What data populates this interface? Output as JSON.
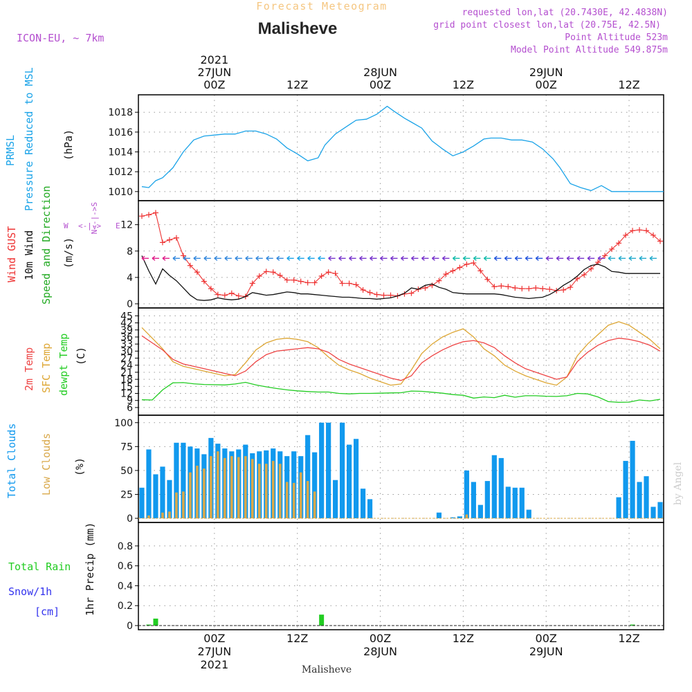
{
  "header": {
    "product": "Forecast Meteogram",
    "location": "Malisheve",
    "model": "ICON-EU, ~ 7km",
    "requested": "requested lon,lat (20.7430E, 42.4838N)",
    "gridpoint": "grid point closest lon,lat (20.75E, 42.5N)",
    "point_alt": "Point Altitude 523m",
    "model_alt": "Model Point Altitude 549.875m",
    "credit": "by Angel",
    "footer_location": "Malisheve"
  },
  "time_axis": {
    "hours_from": -11,
    "hours_to": 65,
    "top_ticks": [
      {
        "h": 0,
        "lines": [
          "2021",
          "27JUN",
          "00Z"
        ]
      },
      {
        "h": 12,
        "lines": [
          "12Z"
        ]
      },
      {
        "h": 24,
        "lines": [
          "28JUN",
          "00Z"
        ]
      },
      {
        "h": 36,
        "lines": [
          "12Z"
        ]
      },
      {
        "h": 48,
        "lines": [
          "29JUN",
          "00Z"
        ]
      },
      {
        "h": 60,
        "lines": [
          "12Z"
        ]
      }
    ],
    "bottom_ticks": [
      {
        "h": 0,
        "lines": [
          "00Z",
          "27JUN",
          "2021"
        ]
      },
      {
        "h": 12,
        "lines": [
          "12Z"
        ]
      },
      {
        "h": 24,
        "lines": [
          "00Z",
          "28JUN"
        ]
      },
      {
        "h": 36,
        "lines": [
          "12Z"
        ]
      },
      {
        "h": 48,
        "lines": [
          "00Z",
          "29JUN"
        ]
      },
      {
        "h": 60,
        "lines": [
          "12Z"
        ]
      }
    ]
  },
  "colors": {
    "pressure": "#1aa3e8",
    "gust": "#ee3333",
    "wind": "#111111",
    "dir_label": "#22aa22",
    "temp": "#ee4444",
    "sfc_temp": "#dda633",
    "dewpt": "#22cc22",
    "total_clouds": "#1199ee",
    "low_clouds": "#d9a84a",
    "rain": "#22cc22",
    "snow": "#3333ee",
    "title_orange": "#f5c680",
    "purple": "#b44fcf"
  },
  "chart_data": [
    {
      "id": "pressure",
      "type": "line",
      "labels": [
        "PRMSL",
        "Pressure Reduced to MSL"
      ],
      "unit": "(hPa)",
      "ylim": [
        1009.5,
        1019.2
      ],
      "yticks": [
        1010,
        1012,
        1014,
        1016,
        1018
      ],
      "x": [
        -10.5,
        -9.5,
        -8.5,
        -7.5,
        -6,
        -4.5,
        -3,
        -1.5,
        0,
        1.5,
        3,
        4.5,
        6,
        7.5,
        9,
        10.5,
        12,
        13.5,
        15,
        16,
        17.5,
        19,
        20.5,
        22,
        23.5,
        25,
        26,
        27.5,
        28.5,
        30,
        31.5,
        33,
        34.5,
        36,
        37.5,
        39,
        40,
        41.5,
        43,
        44.5,
        46,
        47.5,
        49,
        50,
        51.5,
        53,
        54.5,
        56,
        57.5,
        59,
        60.5,
        62,
        63.5,
        64.5,
        65
      ],
      "series": [
        {
          "name": "PRMSL",
          "values": [
            1010.5,
            1010.4,
            1011.1,
            1011.4,
            1012.4,
            1014,
            1015.2,
            1015.6,
            1015.7,
            1015.8,
            1015.8,
            1016.1,
            1016.1,
            1015.8,
            1015.3,
            1014.4,
            1013.8,
            1013.1,
            1013.4,
            1014.7,
            1015.8,
            1016.5,
            1017.2,
            1017.3,
            1017.8,
            1018.6,
            1018.1,
            1017.4,
            1017.0,
            1016.4,
            1015.1,
            1014.3,
            1013.6,
            1014.0,
            1014.6,
            1015.3,
            1015.4,
            1015.4,
            1015.2,
            1015.2,
            1015.0,
            1014.3,
            1013.3,
            1012.4,
            1010.8,
            1010.4,
            1010.1,
            1010.6,
            1010.0,
            1010.0,
            1010.0,
            1010.0,
            1010.0,
            1010.0,
            1010.0
          ]
        }
      ]
    },
    {
      "id": "wind",
      "type": "line",
      "labels": [
        "Wind GUST",
        "10m Wind",
        "Speed and Direction"
      ],
      "unit": "(m/s)",
      "compass": [
        "W",
        "<-|->",
        "E",
        "N",
        "S"
      ],
      "ylim": [
        0,
        14.8
      ],
      "yticks": [
        0,
        4,
        8,
        12
      ],
      "x": [
        -10.5,
        -9.5,
        -8.5,
        -7.5,
        -6.5,
        -5.5,
        -4.5,
        -3.5,
        -2.5,
        -1.5,
        -0.5,
        0.5,
        1.5,
        2.5,
        3.5,
        4.5,
        5.5,
        6.5,
        7.5,
        8.5,
        9.5,
        10.5,
        11.5,
        12.5,
        13.5,
        14.5,
        15.5,
        16.5,
        17.5,
        18.5,
        19.5,
        20.5,
        21.5,
        22.5,
        23.5,
        24.5,
        25.5,
        26.5,
        27.5,
        28.5,
        29.5,
        30.5,
        31.5,
        32.5,
        33.5,
        34.5,
        35.5,
        36.5,
        37.5,
        38.5,
        39.5,
        40.5,
        41.5,
        42.5,
        43.5,
        44.5,
        45.5,
        46.5,
        47.5,
        48.5,
        49.5,
        50.5,
        51.5,
        52.5,
        53.5,
        54.5,
        55.5,
        56.5,
        57.5,
        58.5,
        59.5,
        60.5,
        61.5,
        62.5,
        63.5,
        64.5
      ],
      "series": [
        {
          "name": "Wind GUST",
          "values": [
            13.3,
            13.5,
            13.8,
            9.3,
            9.7,
            10,
            7.3,
            5.8,
            4.8,
            3.4,
            2.3,
            1.4,
            1.3,
            1.6,
            1.2,
            1.1,
            3.1,
            4.2,
            4.9,
            4.8,
            4.3,
            3.6,
            3.6,
            3.4,
            3.2,
            3.2,
            4.2,
            4.8,
            4.6,
            3.1,
            3.1,
            2.9,
            2.1,
            1.7,
            1.4,
            1.3,
            1.3,
            1.2,
            1.5,
            1.6,
            2.2,
            2.4,
            2.8,
            3.5,
            4.5,
            5.0,
            5.5,
            6.0,
            6.2,
            5.0,
            3.7,
            2.6,
            2.7,
            2.6,
            2.4,
            2.3,
            2.3,
            2.4,
            2.3,
            2.2,
            2.0,
            2.1,
            2.5,
            3.8,
            4.4,
            5.3,
            6.3,
            7.3,
            8.3,
            9.2,
            10.4,
            11.1,
            11.2,
            11.1,
            10.4,
            9.5
          ]
        },
        {
          "name": "10m Wind",
          "values": [
            7.3,
            5.0,
            3.0,
            5.3,
            4.3,
            3.5,
            2.4,
            1.3,
            0.6,
            0.5,
            0.6,
            0.9,
            0.7,
            0.6,
            0.7,
            1.1,
            1.7,
            1.5,
            1.3,
            1.4,
            1.6,
            1.8,
            1.7,
            1.5,
            1.5,
            1.4,
            1.3,
            1.2,
            1.1,
            1.0,
            1.0,
            0.9,
            0.8,
            0.8,
            0.7,
            0.8,
            0.9,
            1.2,
            1.6,
            2.4,
            2.2,
            2.8,
            3.0,
            2.5,
            2.2,
            1.7,
            1.6,
            1.5,
            1.5,
            1.5,
            1.5,
            1.5,
            1.4,
            1.2,
            1.0,
            0.9,
            0.8,
            0.9,
            1.0,
            1.4,
            2.0,
            2.8,
            3.4,
            4.2,
            5.2,
            5.8,
            6.0,
            5.6,
            4.9,
            4.8,
            4.6,
            4.6,
            4.6,
            4.6,
            4.6,
            4.6
          ]
        }
      ]
    },
    {
      "id": "temperature",
      "type": "line",
      "labels": [
        "2m Temp",
        "SFC Temp",
        "dewpt Temp"
      ],
      "unit": "(C)",
      "ylim": [
        4.5,
        46
      ],
      "yticks": [
        6,
        9,
        12,
        15,
        18,
        21,
        24,
        27,
        30,
        33,
        36,
        39,
        42,
        45
      ],
      "x": [
        -10.5,
        -9,
        -7.5,
        -6,
        -4.5,
        -3,
        -1.5,
        0,
        1.5,
        3,
        4.5,
        6,
        7.5,
        9,
        10.5,
        12,
        13.5,
        15,
        16.5,
        18,
        19.5,
        21,
        22.5,
        24,
        25.5,
        27,
        28.5,
        30,
        31.5,
        33,
        34.5,
        36,
        37.5,
        39,
        40.5,
        42,
        43.5,
        45,
        46.5,
        48,
        49.5,
        51,
        52.5,
        54,
        55.5,
        57,
        58.5,
        60,
        61.5,
        63,
        64.5
      ],
      "series": [
        {
          "name": "2m Temp",
          "values": [
            36.5,
            33.5,
            30.5,
            26.5,
            24.5,
            23.5,
            22.5,
            21.5,
            20.5,
            19.5,
            21.5,
            25.5,
            28.5,
            30,
            30.5,
            31,
            31.5,
            31,
            29.5,
            26.5,
            24.5,
            23,
            21.5,
            20,
            18.5,
            17.5,
            19.5,
            25,
            28,
            30.5,
            32.5,
            34,
            34.5,
            33.5,
            31.5,
            28,
            25,
            22.5,
            21,
            19.5,
            18,
            19,
            25.5,
            29.5,
            32.5,
            34.5,
            35.5,
            35,
            34,
            32.5,
            30
          ]
        },
        {
          "name": "SFC Temp",
          "values": [
            40,
            35.5,
            31,
            25.5,
            23.5,
            22.5,
            21.5,
            20.5,
            19.5,
            20,
            25,
            30.5,
            33.5,
            35,
            35.5,
            35,
            34,
            31.5,
            27.5,
            24,
            22,
            20.5,
            18.5,
            17,
            15.5,
            16,
            22,
            29,
            33,
            36,
            38,
            39.5,
            36,
            31,
            28,
            24,
            21.5,
            19.5,
            18,
            16.5,
            15.5,
            19,
            28,
            33,
            37,
            41,
            42.5,
            41,
            38,
            35,
            31
          ]
        },
        {
          "name": "dewpt Temp",
          "values": [
            9.3,
            9.2,
            13.5,
            16.5,
            16.6,
            16.1,
            15.8,
            15.7,
            15.6,
            16,
            16.7,
            15.6,
            14.8,
            14.1,
            13.5,
            13.1,
            12.8,
            12.6,
            12.6,
            12,
            11.8,
            12,
            12,
            12.1,
            12.2,
            12.3,
            13,
            12.9,
            12.5,
            12.1,
            11.5,
            11.2,
            10,
            10.5,
            10.2,
            11.2,
            10.4,
            11,
            11,
            10.8,
            10.7,
            11,
            12,
            11.8,
            10.5,
            8.5,
            8.2,
            8.3,
            9.2,
            8.8,
            9.5
          ]
        }
      ]
    },
    {
      "id": "clouds",
      "type": "bar",
      "labels": [
        "Total Clouds",
        "Low Clouds"
      ],
      "unit": "(%)",
      "ylim": [
        0,
        102
      ],
      "yticks": [
        0,
        25,
        50,
        75,
        100
      ],
      "x": [
        -10.5,
        -9.5,
        -8.5,
        -7.5,
        -6.5,
        -5.5,
        -4.5,
        -3.5,
        -2.5,
        -1.5,
        -0.5,
        0.5,
        1.5,
        2.5,
        3.5,
        4.5,
        5.5,
        6.5,
        7.5,
        8.5,
        9.5,
        10.5,
        11.5,
        12.5,
        13.5,
        14.5,
        15.5,
        16.5,
        17.5,
        18.5,
        19.5,
        20.5,
        21.5,
        22.5,
        32.5,
        34.5,
        35.5,
        36.5,
        37.5,
        38.5,
        39.5,
        40.5,
        41.5,
        42.5,
        43.5,
        44.5,
        45.5,
        58.5,
        59.5,
        60.5,
        61.5,
        62.5,
        63.5,
        64.5
      ],
      "series": [
        {
          "name": "Total Clouds",
          "values": [
            32,
            72,
            46,
            54,
            40,
            79,
            79,
            75,
            73,
            67,
            84,
            78,
            73,
            70,
            72,
            77,
            68,
            70,
            71,
            73,
            70,
            65,
            70,
            65,
            87,
            69,
            100,
            100,
            40,
            100,
            77,
            83,
            31,
            20,
            6,
            1,
            2,
            50,
            38,
            14,
            39,
            66,
            63,
            33,
            32,
            32,
            9,
            22,
            60,
            81,
            38,
            44,
            12,
            17
          ]
        },
        {
          "name": "Low Clouds",
          "values": [
            0,
            3,
            0,
            6,
            7,
            27,
            28,
            48,
            55,
            52,
            65,
            70,
            63,
            65,
            64,
            65,
            62,
            57,
            57,
            60,
            57,
            38,
            37,
            48,
            39,
            28,
            0,
            0,
            0,
            0,
            0,
            0,
            0,
            0,
            0,
            0,
            0,
            4,
            0,
            0,
            0,
            0,
            0,
            0,
            0,
            0,
            0,
            0,
            0,
            0,
            0,
            0,
            0,
            0
          ]
        }
      ]
    },
    {
      "id": "precip",
      "type": "bar",
      "labels": [
        "Total Rain",
        "Snow/1h",
        "[cm]"
      ],
      "unit": "1hr Precip (mm)",
      "ylim": [
        0,
        0.98
      ],
      "yticks": [
        0,
        0.2,
        0.4,
        0.6,
        0.8
      ],
      "x": [
        -9.5,
        -8.5,
        15.5,
        60.5
      ],
      "series": [
        {
          "name": "Total Rain",
          "values": [
            0.01,
            0.07,
            0.11,
            0.01
          ]
        }
      ]
    }
  ]
}
